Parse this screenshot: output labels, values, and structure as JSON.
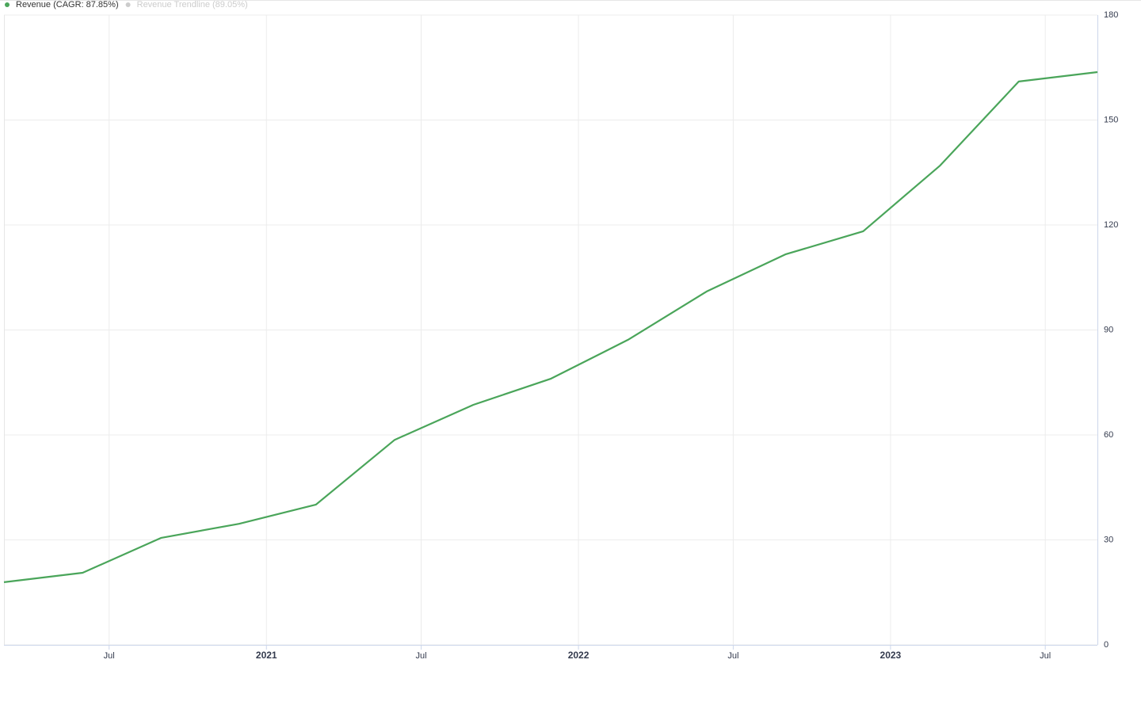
{
  "chart_data": {
    "type": "line",
    "x": [
      "2020-02",
      "2020-05",
      "2020-08",
      "2020-11",
      "2021-02",
      "2021-05",
      "2021-08",
      "2021-11",
      "2022-02",
      "2022-05",
      "2022-08",
      "2022-11",
      "2023-02",
      "2023-05",
      "2023-08"
    ],
    "series": [
      {
        "name": "Revenue (CAGR: 87.85%)",
        "color": "#4aa55a",
        "values": [
          17.9,
          20.6,
          30.6,
          34.6,
          40.1,
          58.6,
          68.6,
          76.1,
          87.2,
          101.0,
          111.6,
          118.2,
          137.0,
          161.0,
          163.7
        ]
      }
    ],
    "hidden_series": [
      {
        "name": "Revenue Trendline (89.05%)",
        "color": "#cccccc"
      }
    ],
    "xlim": [
      "2020-02",
      "2023-08"
    ],
    "xticks": [
      {
        "value": "2020-07",
        "label": "Jul"
      },
      {
        "value": "2021-01",
        "label": "2021"
      },
      {
        "value": "2021-07",
        "label": "Jul"
      },
      {
        "value": "2022-01",
        "label": "2022"
      },
      {
        "value": "2022-07",
        "label": "Jul"
      },
      {
        "value": "2023-01",
        "label": "2023"
      },
      {
        "value": "2023-07",
        "label": "Jul"
      }
    ],
    "ylim": [
      0,
      180
    ],
    "yticks": [
      0,
      30,
      60,
      90,
      120,
      150,
      180
    ],
    "y_axis_side": "right",
    "grid": true
  }
}
